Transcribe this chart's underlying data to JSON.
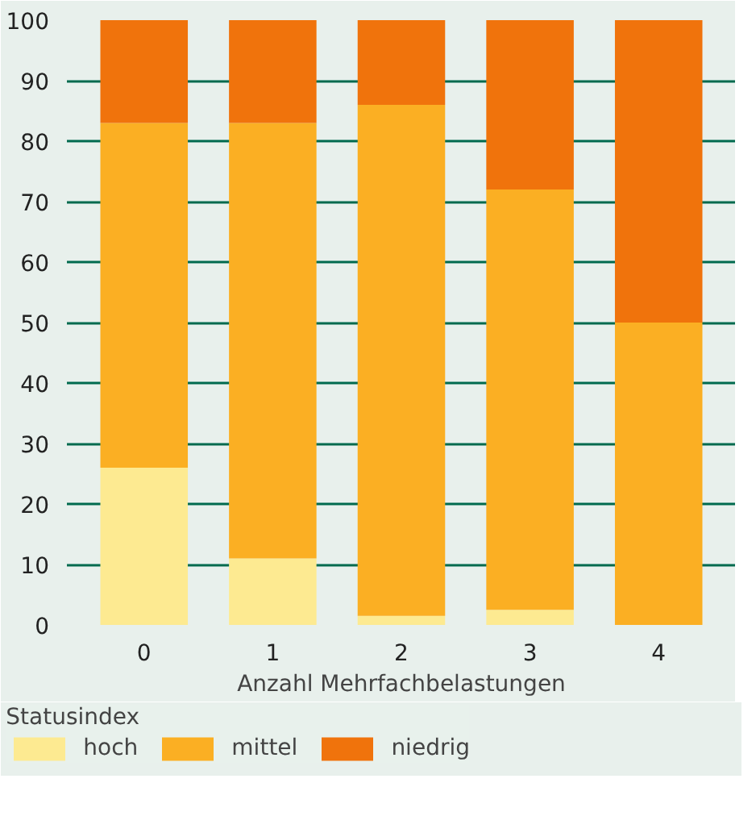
{
  "chart_data": {
    "type": "bar",
    "stacked": true,
    "xlabel": "Anzahl Mehrfachbelastungen",
    "legend_title": "Statusindex",
    "legend": "bottom",
    "grid": "y",
    "categories": [
      "0",
      "1",
      "2",
      "3",
      "4"
    ],
    "ylim": [
      0,
      100
    ],
    "yticks": [
      0,
      10,
      20,
      30,
      40,
      50,
      60,
      70,
      80,
      90,
      100
    ],
    "series": [
      {
        "name": "hoch",
        "color": "#fdea91",
        "values": [
          26,
          11,
          1.5,
          2.5,
          0
        ]
      },
      {
        "name": "mittel",
        "color": "#fbaf23",
        "values": [
          57,
          72,
          84.5,
          69.5,
          50
        ]
      },
      {
        "name": "niedrig",
        "color": "#f0730c",
        "values": [
          17,
          17,
          14,
          28,
          50
        ]
      }
    ]
  }
}
